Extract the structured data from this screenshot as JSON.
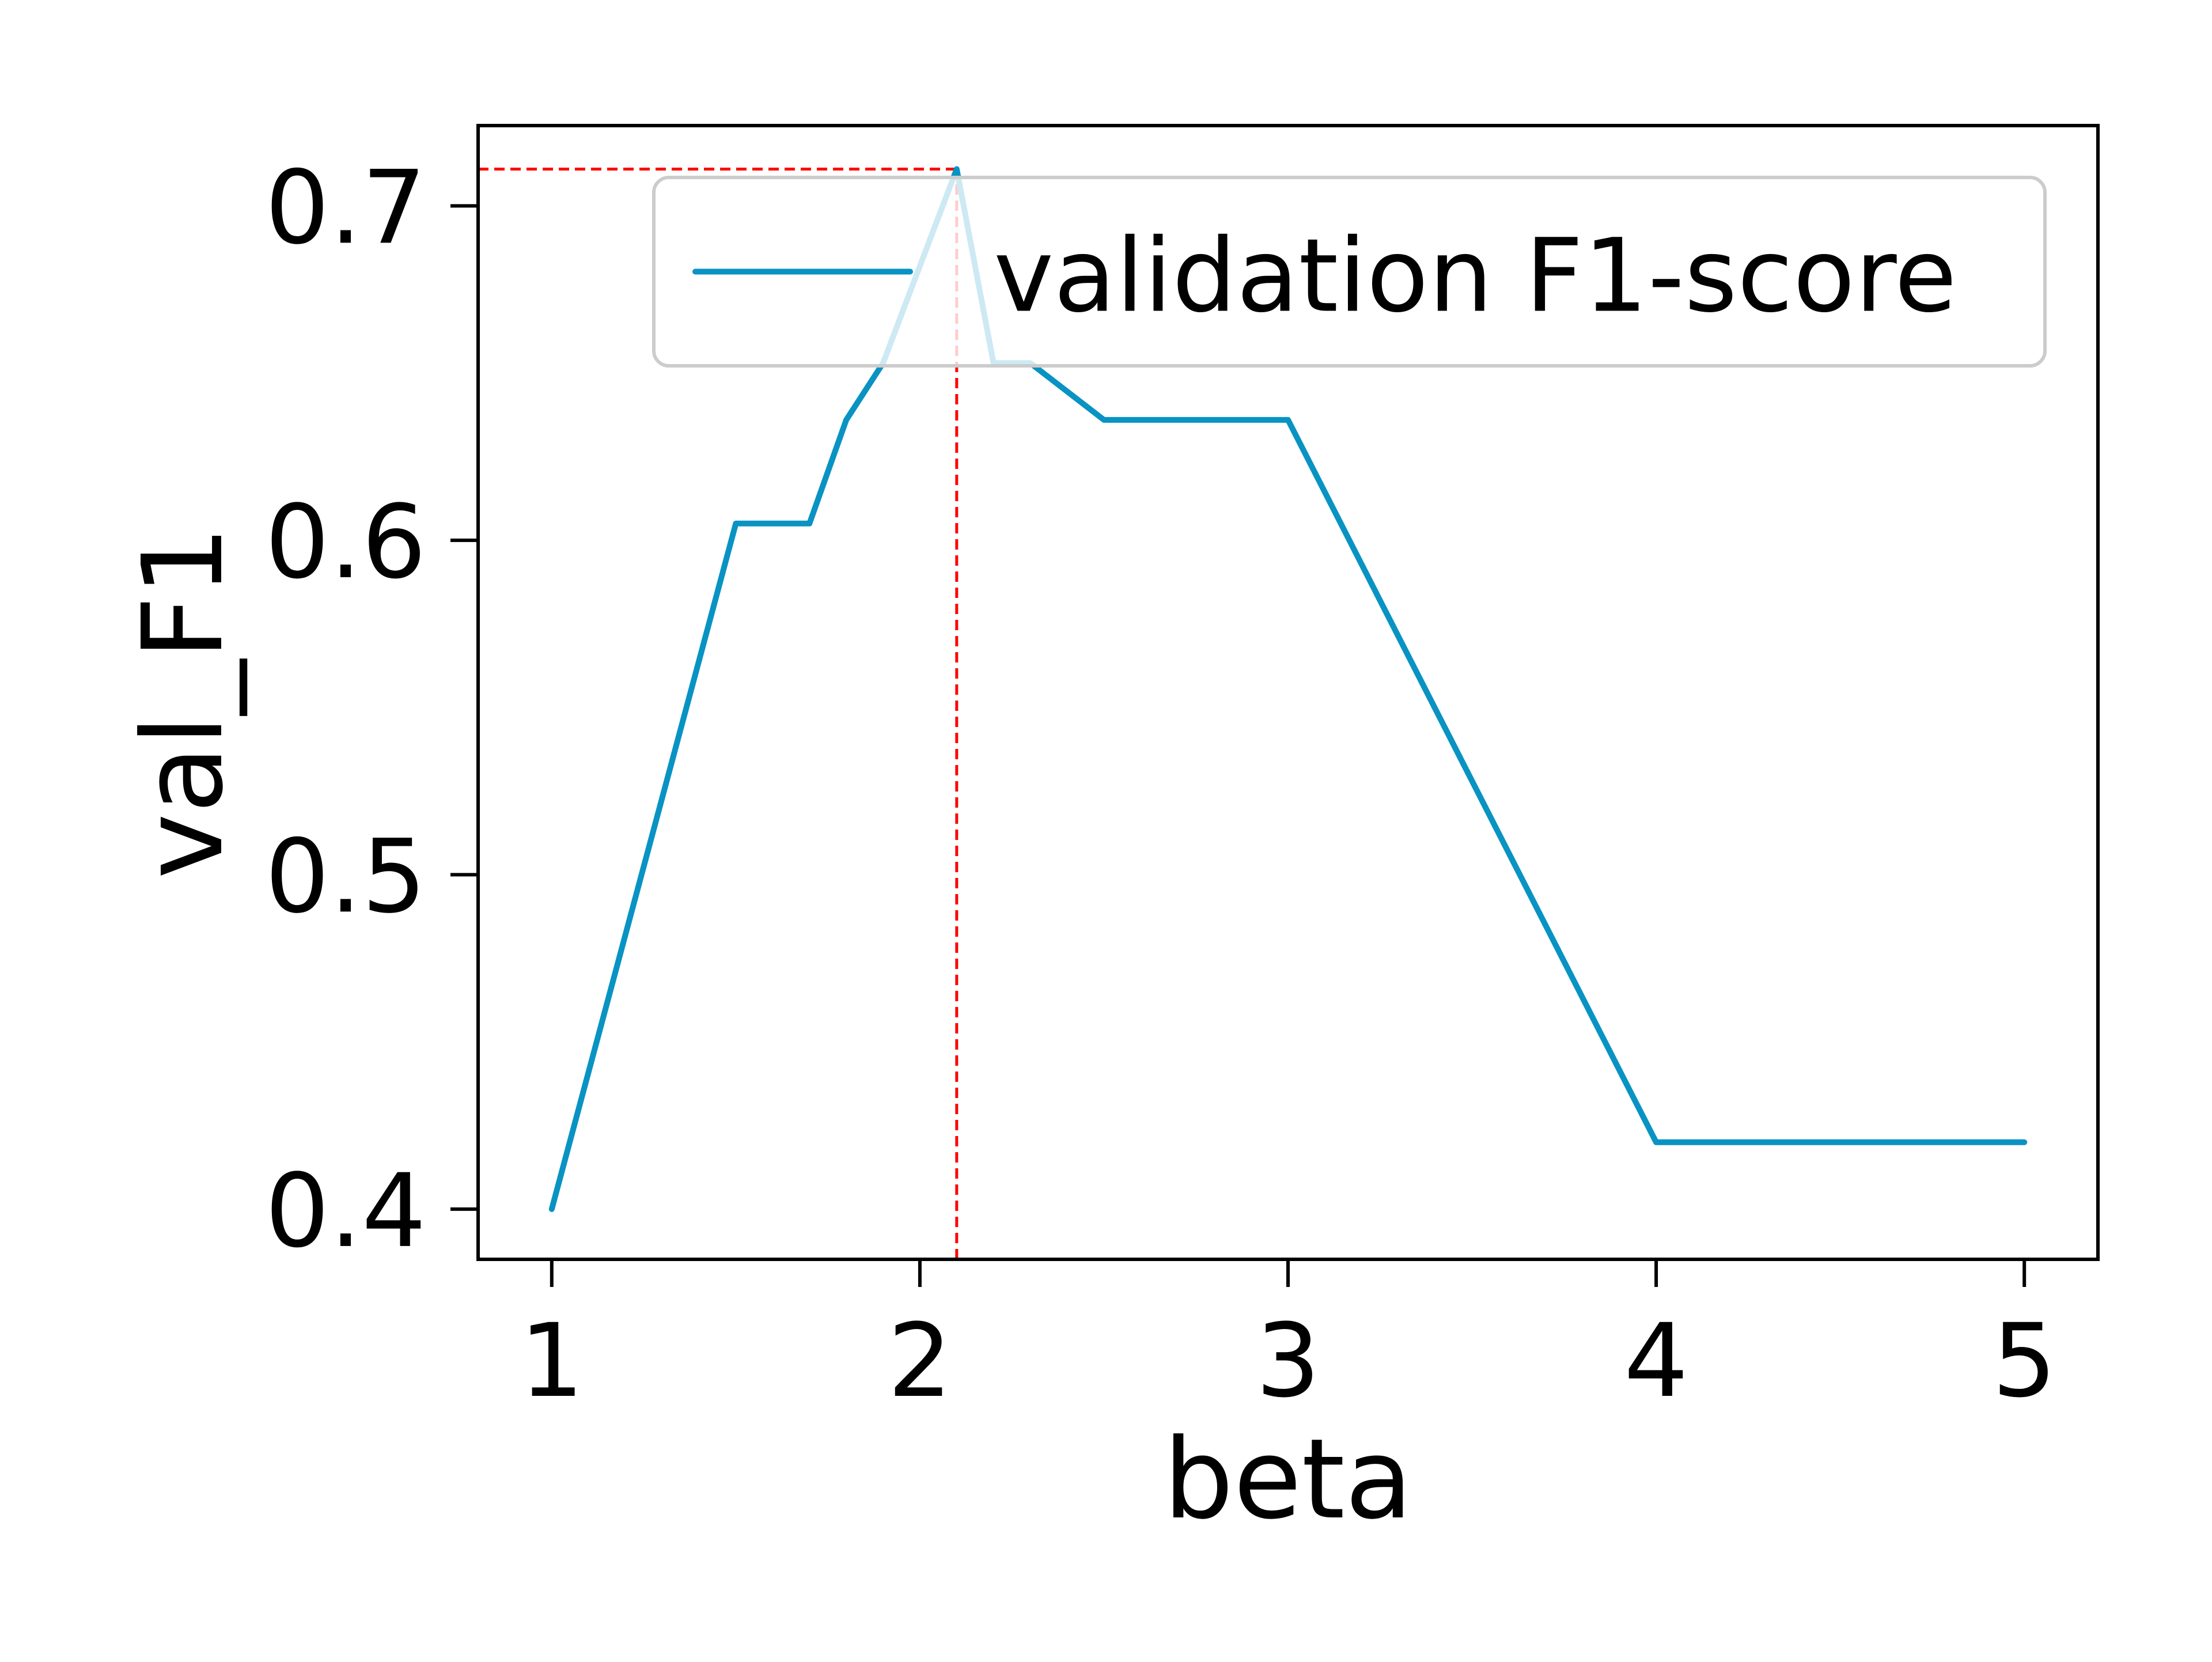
{
  "chart_data": {
    "type": "line",
    "xlabel": "beta",
    "ylabel": "val_F1",
    "xlim": [
      0.8,
      5.2
    ],
    "ylim": [
      0.385,
      0.724
    ],
    "xticks": [
      1,
      2,
      3,
      4,
      5
    ],
    "yticks": [
      0.4,
      0.5,
      0.6,
      0.7
    ],
    "xtick_labels": [
      "1",
      "2",
      "3",
      "4",
      "5"
    ],
    "ytick_labels": [
      "0.4",
      "0.5",
      "0.6",
      "0.7"
    ],
    "grid": false,
    "legend": {
      "position": "top-right",
      "entries": [
        "validation F1-score"
      ]
    },
    "series": [
      {
        "name": "validation F1-score",
        "color": "#0993c3",
        "x": [
          1.0,
          1.5,
          1.7,
          1.8,
          1.9,
          2.1,
          2.2,
          2.3,
          2.5,
          3.0,
          4.0,
          5.0
        ],
        "y": [
          0.4,
          0.605,
          0.605,
          0.636,
          0.653,
          0.711,
          0.653,
          0.653,
          0.636,
          0.636,
          0.42,
          0.42
        ]
      }
    ],
    "annotations": [
      {
        "type": "vline",
        "x": 2.1,
        "color": "#ff0000",
        "style": "dashed",
        "to_y": 0.711
      },
      {
        "type": "hline",
        "y": 0.711,
        "color": "#ff0000",
        "style": "dashed",
        "to_x": 2.1
      }
    ]
  }
}
